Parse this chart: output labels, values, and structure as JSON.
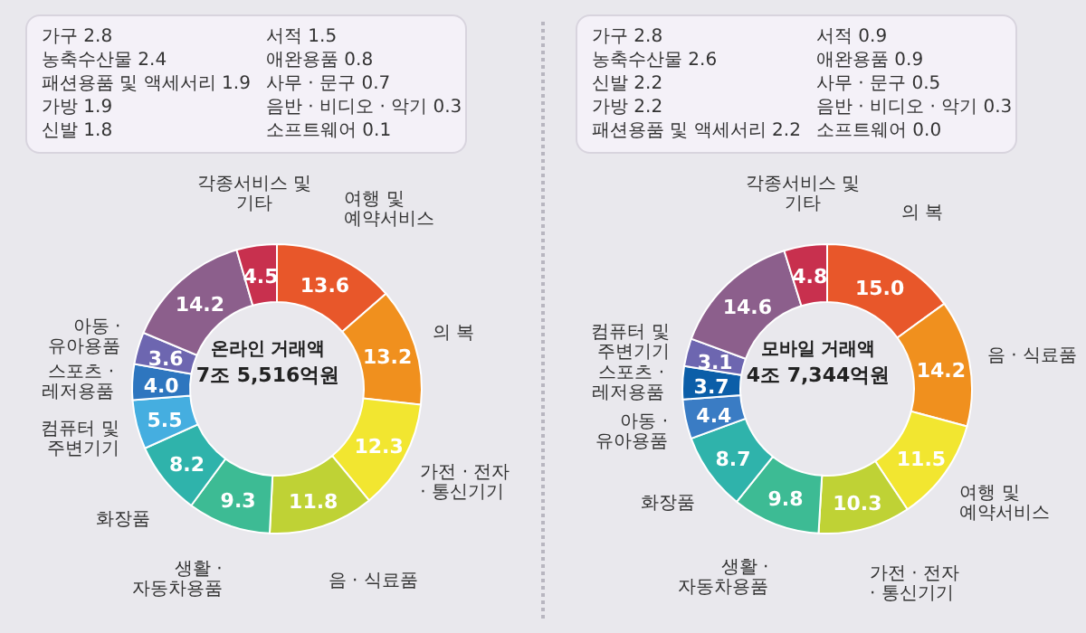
{
  "chart_data": [
    {
      "type": "donut",
      "title": "온라인 거래액",
      "subtitle": "7조 5,516억원",
      "value_labels": [
        "13.6",
        "13.2",
        "12.3",
        "11.8",
        "9.3",
        "8.2",
        "5.5",
        "4.0",
        "3.6",
        "14.2",
        "4.5"
      ],
      "categories": [
        "여행 및 예약서비스",
        "의 복",
        "가전 · 전자 · 통신기기",
        "음 · 식료품",
        "생활 · 자동차용품",
        "화장품",
        "컴퓨터 및 주변기기",
        "스포츠 · 레저용품",
        "아동 · 유아용품",
        null,
        "각종서비스 및 기타"
      ],
      "values": [
        13.6,
        13.2,
        12.3,
        11.8,
        9.3,
        8.2,
        5.5,
        4.0,
        3.6,
        14.2,
        4.5
      ],
      "colors": [
        "#e8572a",
        "#f0901e",
        "#f2e630",
        "#bfd235",
        "#3dbb94",
        "#2fb3ab",
        "#45aee0",
        "#2e76bf",
        "#6d66b0",
        "#8c5f8c",
        "#c8304e"
      ],
      "annotations": [
        "가구 2.8",
        "농축수산물 2.4",
        "패션용품 및 액세서리 1.9",
        "가방 1.9",
        "신발 1.8",
        "서적 1.5",
        "애완용품 0.8",
        "사무 · 문구 0.7",
        "음반 · 비디오 · 악기 0.3",
        "소프트웨어 0.1"
      ]
    },
    {
      "type": "donut",
      "title": "모바일 거래액",
      "subtitle": "4조 7,344억원",
      "value_labels": [
        "15.0",
        "14.2",
        "11.5",
        "10.3",
        "9.8",
        "8.7",
        "4.4",
        "3.7",
        "3.1",
        "14.6",
        "4.8"
      ],
      "categories": [
        "의 복",
        "음 · 식료품",
        "여행 및 예약서비스",
        "가전 · 전자 · 통신기기",
        "생활 · 자동차용품",
        "화장품",
        "아동 · 유아용품",
        "스포츠 · 레저용품",
        "컴퓨터 및 주변기기",
        null,
        "각종서비스 및 기타"
      ],
      "values": [
        15.0,
        14.2,
        11.5,
        10.3,
        9.8,
        8.7,
        4.4,
        3.7,
        3.1,
        14.6,
        4.8
      ],
      "colors": [
        "#e8572a",
        "#f0901e",
        "#f2e630",
        "#bfd235",
        "#3dbb94",
        "#2fb3ab",
        "#3a7cc4",
        "#0b5ea8",
        "#6d66b0",
        "#8c5f8c",
        "#c8304e"
      ],
      "annotations": [
        "가구 2.8",
        "농축수산물 2.6",
        "신발 2.2",
        "가방 2.2",
        "패션용품 및 액세서리 2.2",
        "서적 0.9",
        "애완용품 0.9",
        "사무 · 문구 0.5",
        "음반 · 비디오 · 악기 0.3",
        "소프트웨어 0.0"
      ]
    }
  ]
}
